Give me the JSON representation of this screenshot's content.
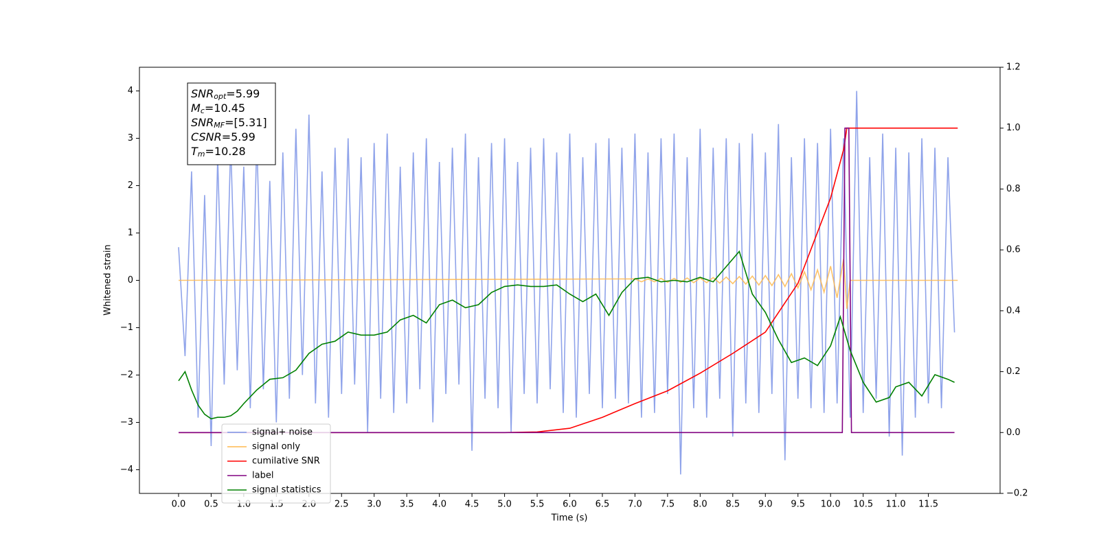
{
  "chart_data": {
    "type": "line",
    "xlabel": "Time (s)",
    "ylabel": "Whitened strain",
    "xlim": [
      -0.6,
      12.6
    ],
    "ylim": [
      -4.5,
      4.5
    ],
    "y2lim": [
      -0.2,
      1.2
    ],
    "xticks": [
      {
        "value": 0,
        "label": "0.0"
      },
      0.5,
      {
        "value": 1,
        "label": "1.0"
      },
      1.5,
      {
        "value": 2,
        "label": "2.0"
      },
      2.5,
      {
        "value": 3,
        "label": "3.0"
      },
      3.5,
      {
        "value": 4,
        "label": "4.0"
      },
      4.5,
      {
        "value": 5,
        "label": "5.0"
      },
      5.5,
      {
        "value": 6,
        "label": "6.0"
      },
      6.5,
      {
        "value": 7,
        "label": "7.0"
      },
      7.5,
      {
        "value": 8,
        "label": "8.0"
      },
      8.5,
      {
        "value": 9,
        "label": "9.0"
      },
      9.5,
      {
        "value": 10,
        "label": "10.0"
      },
      10.5,
      {
        "value": 11,
        "label": "11.0"
      },
      11.5
    ],
    "yticks": [
      {
        "value": -4,
        "label": "−4"
      },
      {
        "value": -3,
        "label": "−3"
      },
      {
        "value": -2,
        "label": "−2"
      },
      {
        "value": -1,
        "label": "−1"
      },
      0,
      1,
      2,
      3,
      4
    ],
    "y2ticks": [
      {
        "value": -0.2,
        "label": "−0.2"
      },
      {
        "value": 0,
        "label": "0.0"
      },
      0.2,
      0.4,
      0.6,
      0.8,
      {
        "value": 1,
        "label": "1.0"
      },
      1.2
    ],
    "legend": "lower left",
    "annotation": [
      {
        "main": "SNR",
        "sub": "opt",
        "rest": "=5.99"
      },
      {
        "main": "M",
        "sub": "c",
        "rest": "=10.45"
      },
      {
        "main": "SNR",
        "sub": "MF",
        "rest": "=[5.31]"
      },
      {
        "main": "CSNR",
        "rest": "=5.99"
      },
      {
        "main": "T",
        "sub": "m",
        "rest": "=10.28"
      }
    ],
    "series": [
      {
        "name": "signal+ noise",
        "color": "#7b93e6",
        "x": [
          0.0,
          0.1,
          0.2,
          0.3,
          0.4,
          0.5,
          0.6,
          0.7,
          0.8,
          0.9,
          1.0,
          1.1,
          1.2,
          1.3,
          1.4,
          1.5,
          1.6,
          1.7,
          1.8,
          1.9,
          2.0,
          2.1,
          2.2,
          2.3,
          2.4,
          2.5,
          2.6,
          2.7,
          2.8,
          2.9,
          3.0,
          3.1,
          3.2,
          3.3,
          3.4,
          3.5,
          3.6,
          3.7,
          3.8,
          3.9,
          4.0,
          4.1,
          4.2,
          4.3,
          4.4,
          4.5,
          4.6,
          4.7,
          4.8,
          4.9,
          5.0,
          5.1,
          5.2,
          5.3,
          5.4,
          5.5,
          5.6,
          5.7,
          5.8,
          5.9,
          6.0,
          6.1,
          6.2,
          6.3,
          6.4,
          6.5,
          6.6,
          6.7,
          6.8,
          6.9,
          7.0,
          7.1,
          7.2,
          7.3,
          7.4,
          7.5,
          7.6,
          7.7,
          7.8,
          7.9,
          8.0,
          8.1,
          8.2,
          8.3,
          8.4,
          8.5,
          8.6,
          8.7,
          8.8,
          8.9,
          9.0,
          9.1,
          9.2,
          9.3,
          9.4,
          9.5,
          9.6,
          9.7,
          9.8,
          9.9,
          10.0,
          10.1,
          10.2,
          10.3,
          10.4,
          10.5,
          10.6,
          10.7,
          10.8,
          10.9,
          11.0,
          11.1,
          11.2,
          11.3,
          11.4,
          11.5,
          11.6,
          11.7,
          11.8,
          11.9
        ],
        "values": [
          0.7,
          -1.6,
          2.3,
          -2.9,
          1.8,
          -3.5,
          2.6,
          -2.2,
          2.9,
          -1.9,
          2.4,
          -2.7,
          3.0,
          -2.3,
          2.1,
          -3.0,
          2.7,
          -2.5,
          3.2,
          -2.0,
          3.5,
          -2.6,
          2.3,
          -2.9,
          2.8,
          -2.4,
          3.0,
          -2.2,
          2.6,
          -3.2,
          2.9,
          -2.5,
          3.1,
          -2.8,
          2.4,
          -2.6,
          2.7,
          -2.3,
          3.0,
          -3.0,
          2.5,
          -2.4,
          2.8,
          -2.2,
          3.1,
          -3.6,
          2.6,
          -2.5,
          2.9,
          -2.7,
          3.0,
          -3.2,
          2.5,
          -2.4,
          2.8,
          -2.6,
          3.0,
          -2.3,
          2.7,
          -2.8,
          3.1,
          -2.9,
          2.6,
          -2.4,
          2.9,
          -2.7,
          3.0,
          -2.5,
          2.8,
          -2.6,
          3.1,
          -2.9,
          2.7,
          -2.8,
          3.0,
          -2.4,
          3.1,
          -4.1,
          2.6,
          -2.7,
          3.2,
          -2.9,
          2.8,
          -2.5,
          3.0,
          -3.3,
          2.9,
          -2.6,
          3.1,
          -2.8,
          2.7,
          -2.4,
          3.3,
          -3.8,
          2.6,
          -2.5,
          3.0,
          -2.7,
          2.9,
          -2.8,
          3.2,
          -2.6,
          3.0,
          -2.9,
          4.0,
          -2.8,
          2.6,
          -2.5,
          3.1,
          -3.3,
          2.8,
          -3.7,
          2.7,
          -2.9,
          3.0,
          -2.6,
          2.8,
          -2.7,
          2.6,
          -1.1
        ]
      },
      {
        "name": "signal only",
        "color": "#ffb84d",
        "x": [
          0.0,
          7.0,
          7.1,
          7.2,
          7.3,
          7.4,
          7.5,
          7.6,
          7.7,
          7.8,
          7.9,
          8.0,
          8.1,
          8.2,
          8.3,
          8.4,
          8.5,
          8.6,
          8.7,
          8.8,
          8.9,
          9.0,
          9.1,
          9.2,
          9.3,
          9.4,
          9.5,
          9.6,
          9.7,
          9.8,
          9.9,
          10.0,
          10.1,
          10.2,
          10.25,
          10.3,
          11.95
        ],
        "values": [
          0,
          0.03,
          -0.03,
          0.03,
          -0.03,
          0.04,
          -0.04,
          0.04,
          -0.04,
          0.05,
          -0.05,
          0.05,
          -0.05,
          0.06,
          -0.06,
          0.07,
          -0.07,
          0.08,
          -0.08,
          0.09,
          -0.1,
          0.1,
          -0.11,
          0.12,
          -0.13,
          0.14,
          -0.16,
          0.18,
          -0.2,
          0.22,
          -0.25,
          0.3,
          -0.37,
          0.45,
          -0.6,
          0,
          0
        ]
      },
      {
        "name": "cumilative SNR",
        "color": "#ff0000",
        "axis": "y2",
        "x": [
          0.0,
          5.0,
          5.5,
          6.0,
          6.5,
          7.0,
          7.5,
          8.0,
          8.5,
          9.0,
          9.5,
          10.0,
          10.2,
          10.25,
          11.95
        ],
        "values": [
          0,
          0,
          0.002,
          0.014,
          0.05,
          0.095,
          0.137,
          0.195,
          0.26,
          0.33,
          0.49,
          0.77,
          0.93,
          1.0,
          1.0
        ]
      },
      {
        "name": "label",
        "color": "#800080",
        "axis": "y2",
        "x": [
          0.0,
          10.18,
          10.22,
          10.28,
          10.32,
          11.9
        ],
        "values": [
          0,
          0,
          1,
          1,
          0,
          0
        ]
      },
      {
        "name": "signal statistics",
        "color": "#008000",
        "axis": "y2",
        "x": [
          0.0,
          0.1,
          0.2,
          0.3,
          0.4,
          0.5,
          0.6,
          0.7,
          0.8,
          0.9,
          1.0,
          1.2,
          1.4,
          1.6,
          1.8,
          2.0,
          2.2,
          2.4,
          2.6,
          2.8,
          3.0,
          3.2,
          3.4,
          3.6,
          3.8,
          4.0,
          4.2,
          4.4,
          4.6,
          4.8,
          5.0,
          5.2,
          5.4,
          5.6,
          5.8,
          6.0,
          6.2,
          6.4,
          6.6,
          6.8,
          7.0,
          7.2,
          7.4,
          7.6,
          7.8,
          8.0,
          8.2,
          8.4,
          8.6,
          8.8,
          9.0,
          9.2,
          9.4,
          9.6,
          9.8,
          10.0,
          10.15,
          10.3,
          10.5,
          10.7,
          10.9,
          11.0,
          11.2,
          11.4,
          11.6,
          11.8,
          11.9
        ],
        "values": [
          0.17,
          0.2,
          0.14,
          0.09,
          0.06,
          0.045,
          0.05,
          0.05,
          0.055,
          0.07,
          0.095,
          0.14,
          0.175,
          0.18,
          0.205,
          0.26,
          0.29,
          0.3,
          0.33,
          0.32,
          0.32,
          0.33,
          0.37,
          0.385,
          0.36,
          0.42,
          0.435,
          0.41,
          0.42,
          0.46,
          0.48,
          0.485,
          0.48,
          0.48,
          0.485,
          0.455,
          0.43,
          0.455,
          0.385,
          0.46,
          0.505,
          0.51,
          0.495,
          0.5,
          0.495,
          0.51,
          0.495,
          0.545,
          0.595,
          0.455,
          0.395,
          0.305,
          0.23,
          0.245,
          0.22,
          0.285,
          0.38,
          0.27,
          0.165,
          0.1,
          0.115,
          0.15,
          0.165,
          0.12,
          0.19,
          0.175,
          0.165
        ]
      }
    ]
  }
}
